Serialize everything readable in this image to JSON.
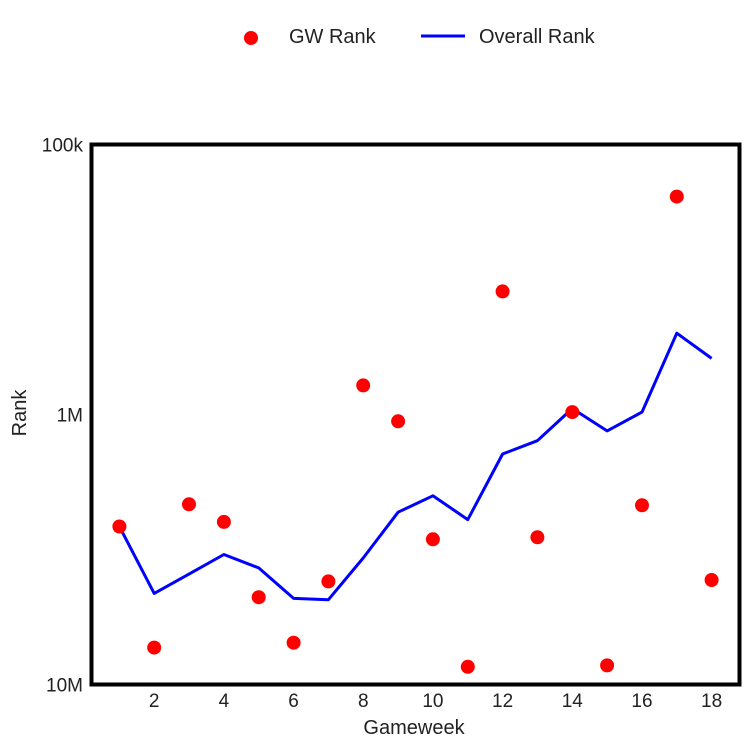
{
  "chart_data": {
    "type": "line",
    "xlabel": "Gameweek",
    "ylabel": "Rank",
    "xlim": [
      0.2,
      18.8
    ],
    "ylim": [
      10000000,
      100000
    ],
    "yscale": "log",
    "y_inverted": true,
    "grid": false,
    "legend_position": "top-center",
    "x_ticks": [
      2,
      4,
      6,
      8,
      10,
      12,
      14,
      16,
      18
    ],
    "x_tick_labels": [
      "2",
      "4",
      "6",
      "8",
      "10",
      "12",
      "14",
      "16",
      "18"
    ],
    "y_ticks": [
      100000,
      1000000,
      10000000
    ],
    "y_tick_labels": [
      "100k",
      "1M",
      "10M"
    ],
    "series": [
      {
        "name": "GW Rank",
        "kind": "scatter",
        "color": "#ff0000",
        "x": [
          1,
          2,
          3,
          4,
          5,
          6,
          7,
          8,
          9,
          10,
          11,
          12,
          13,
          14,
          15,
          16,
          17,
          18
        ],
        "y": [
          2600000,
          7300000,
          2150000,
          2500000,
          4750000,
          7000000,
          4150000,
          780000,
          1060000,
          2900000,
          8600000,
          350000,
          2850000,
          980000,
          8500000,
          2170000,
          156000,
          4100000
        ]
      },
      {
        "name": "Overall Rank",
        "kind": "line",
        "color": "#0000ff",
        "x": [
          1,
          2,
          3,
          4,
          5,
          6,
          7,
          8,
          9,
          10,
          11,
          12,
          13,
          14,
          15,
          16,
          17,
          18
        ],
        "y": [
          2600000,
          4600000,
          3900000,
          3300000,
          3700000,
          4800000,
          4850000,
          3400000,
          2300000,
          2000000,
          2450000,
          1400000,
          1250000,
          950000,
          1150000,
          980000,
          500000,
          620000
        ]
      }
    ]
  }
}
